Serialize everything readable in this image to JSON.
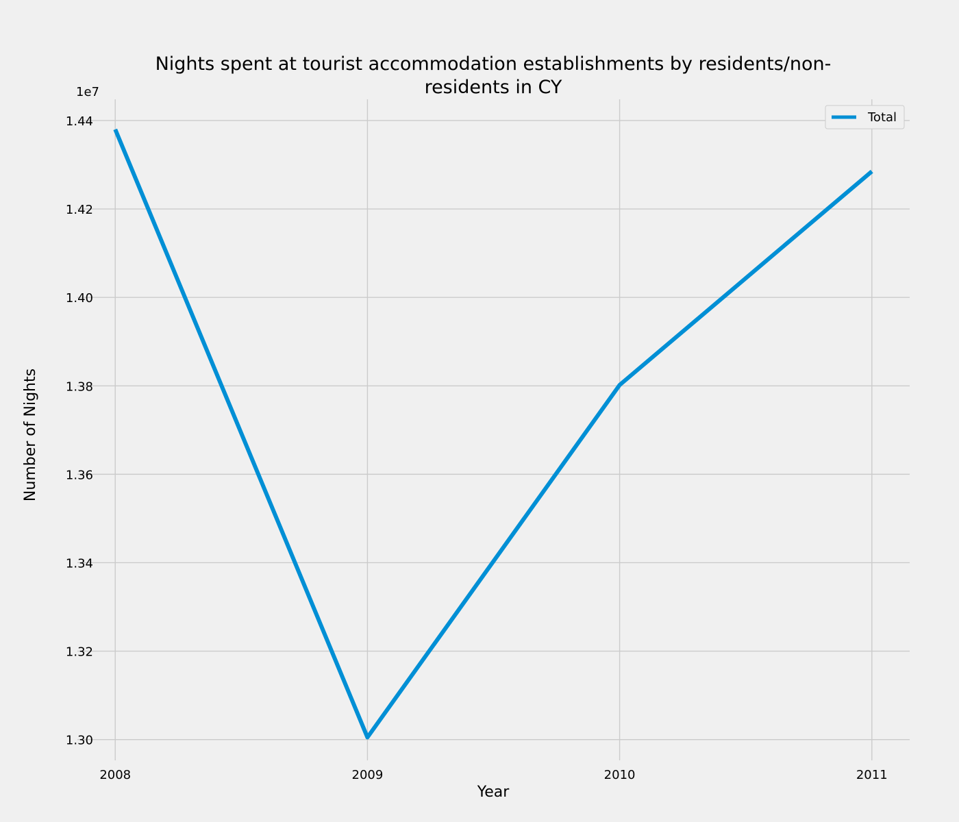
{
  "chart_data": {
    "type": "line",
    "title_lines": [
      "Nights spent at tourist accommodation establishments by residents/non-",
      "residents in CY"
    ],
    "xlabel": "Year",
    "ylabel": "Number of Nights",
    "y_offset_label": "1e7",
    "x": [
      2008,
      2009,
      2010,
      2011
    ],
    "x_tick_labels": [
      "2008",
      "2009",
      "2010",
      "2011"
    ],
    "y_ticks": [
      1.3,
      1.32,
      1.34,
      1.36,
      1.38,
      1.4,
      1.42,
      1.44
    ],
    "y_tick_labels": [
      "1.30",
      "1.32",
      "1.34",
      "1.36",
      "1.38",
      "1.40",
      "1.42",
      "1.44"
    ],
    "ylim": [
      1.2953,
      1.4448
    ],
    "xlim": [
      2007.85,
      2011.15
    ],
    "y_scale": 10000000,
    "series": [
      {
        "name": "Total",
        "color": "#008fd5",
        "values": [
          14380000,
          13005000,
          13802000,
          14285000
        ]
      }
    ],
    "legend": {
      "position": "top-right"
    },
    "grid": true
  }
}
